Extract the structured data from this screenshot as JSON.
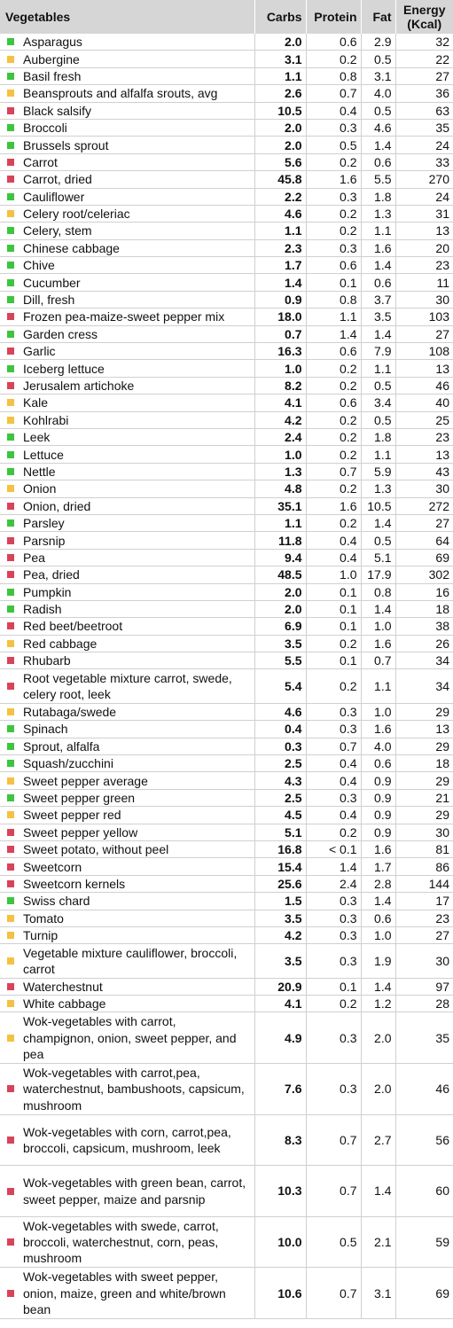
{
  "headers": {
    "name": "Vegetables",
    "carbs": "Carbs",
    "protein": "Protein",
    "fat": "Fat",
    "energy_line1": "Energy",
    "energy_line2": "(Kcal)"
  },
  "colors": {
    "green": "#3ec43e",
    "yellow": "#f5c142",
    "red": "#d9435a"
  },
  "rows": [
    {
      "name": "Asparagus",
      "color": "green",
      "carbs": "2.0",
      "protein": "0.6",
      "fat": "2.9",
      "energy": "32"
    },
    {
      "name": "Aubergine",
      "color": "yellow",
      "carbs": "3.1",
      "protein": "0.2",
      "fat": "0.5",
      "energy": "22"
    },
    {
      "name": "Basil fresh",
      "color": "green",
      "carbs": "1.1",
      "protein": "0.8",
      "fat": "3.1",
      "energy": "27"
    },
    {
      "name": "Beansprouts and alfalfa srouts, avg",
      "color": "yellow",
      "carbs": "2.6",
      "protein": "0.7",
      "fat": "4.0",
      "energy": "36"
    },
    {
      "name": "Black salsify",
      "color": "red",
      "carbs": "10.5",
      "protein": "0.4",
      "fat": "0.5",
      "energy": "63"
    },
    {
      "name": "Broccoli",
      "color": "green",
      "carbs": "2.0",
      "protein": "0.3",
      "fat": "4.6",
      "energy": "35"
    },
    {
      "name": "Brussels sprout",
      "color": "green",
      "carbs": "2.0",
      "protein": "0.5",
      "fat": "1.4",
      "energy": "24"
    },
    {
      "name": "Carrot",
      "color": "red",
      "carbs": "5.6",
      "protein": "0.2",
      "fat": "0.6",
      "energy": "33"
    },
    {
      "name": "Carrot, dried",
      "color": "red",
      "carbs": "45.8",
      "protein": "1.6",
      "fat": "5.5",
      "energy": "270"
    },
    {
      "name": "Cauliflower",
      "color": "green",
      "carbs": "2.2",
      "protein": "0.3",
      "fat": "1.8",
      "energy": "24"
    },
    {
      "name": "Celery root/celeriac",
      "color": "yellow",
      "carbs": "4.6",
      "protein": "0.2",
      "fat": "1.3",
      "energy": "31"
    },
    {
      "name": "Celery, stem",
      "color": "green",
      "carbs": "1.1",
      "protein": "0.2",
      "fat": "1.1",
      "energy": "13"
    },
    {
      "name": "Chinese cabbage",
      "color": "green",
      "carbs": "2.3",
      "protein": "0.3",
      "fat": "1.6",
      "energy": "20"
    },
    {
      "name": "Chive",
      "color": "green",
      "carbs": "1.7",
      "protein": "0.6",
      "fat": "1.4",
      "energy": "23"
    },
    {
      "name": "Cucumber",
      "color": "green",
      "carbs": "1.4",
      "protein": "0.1",
      "fat": "0.6",
      "energy": "11"
    },
    {
      "name": "Dill, fresh",
      "color": "green",
      "carbs": "0.9",
      "protein": "0.8",
      "fat": "3.7",
      "energy": "30"
    },
    {
      "name": "Frozen pea-maize-sweet pepper mix",
      "color": "red",
      "carbs": "18.0",
      "protein": "1.1",
      "fat": "3.5",
      "energy": "103"
    },
    {
      "name": "Garden cress",
      "color": "green",
      "carbs": "0.7",
      "protein": "1.4",
      "fat": "1.4",
      "energy": "27"
    },
    {
      "name": "Garlic",
      "color": "red",
      "carbs": "16.3",
      "protein": "0.6",
      "fat": "7.9",
      "energy": "108"
    },
    {
      "name": "Iceberg lettuce",
      "color": "green",
      "carbs": "1.0",
      "protein": "0.2",
      "fat": "1.1",
      "energy": "13"
    },
    {
      "name": "Jerusalem artichoke",
      "color": "red",
      "carbs": "8.2",
      "protein": "0.2",
      "fat": "0.5",
      "energy": "46"
    },
    {
      "name": "Kale",
      "color": "yellow",
      "carbs": "4.1",
      "protein": "0.6",
      "fat": "3.4",
      "energy": "40"
    },
    {
      "name": "Kohlrabi",
      "color": "yellow",
      "carbs": "4.2",
      "protein": "0.2",
      "fat": "0.5",
      "energy": "25"
    },
    {
      "name": "Leek",
      "color": "green",
      "carbs": "2.4",
      "protein": "0.2",
      "fat": "1.8",
      "energy": "23"
    },
    {
      "name": "Lettuce",
      "color": "green",
      "carbs": "1.0",
      "protein": "0.2",
      "fat": "1.1",
      "energy": "13"
    },
    {
      "name": "Nettle",
      "color": "green",
      "carbs": "1.3",
      "protein": "0.7",
      "fat": "5.9",
      "energy": "43"
    },
    {
      "name": "Onion",
      "color": "yellow",
      "carbs": "4.8",
      "protein": "0.2",
      "fat": "1.3",
      "energy": "30"
    },
    {
      "name": "Onion, dried",
      "color": "red",
      "carbs": "35.1",
      "protein": "1.6",
      "fat": "10.5",
      "energy": "272"
    },
    {
      "name": "Parsley",
      "color": "green",
      "carbs": "1.1",
      "protein": "0.2",
      "fat": "1.4",
      "energy": "27"
    },
    {
      "name": "Parsnip",
      "color": "red",
      "carbs": "11.8",
      "protein": "0.4",
      "fat": "0.5",
      "energy": "64"
    },
    {
      "name": "Pea",
      "color": "red",
      "carbs": "9.4",
      "protein": "0.4",
      "fat": "5.1",
      "energy": "69"
    },
    {
      "name": "Pea, dried",
      "color": "red",
      "carbs": "48.5",
      "protein": "1.0",
      "fat": "17.9",
      "energy": "302"
    },
    {
      "name": "Pumpkin",
      "color": "green",
      "carbs": "2.0",
      "protein": "0.1",
      "fat": "0.8",
      "energy": "16"
    },
    {
      "name": "Radish",
      "color": "green",
      "carbs": "2.0",
      "protein": "0.1",
      "fat": "1.4",
      "energy": "18"
    },
    {
      "name": "Red beet/beetroot",
      "color": "red",
      "carbs": "6.9",
      "protein": "0.1",
      "fat": "1.0",
      "energy": "38"
    },
    {
      "name": "Red cabbage",
      "color": "yellow",
      "carbs": "3.5",
      "protein": "0.2",
      "fat": "1.6",
      "energy": "26"
    },
    {
      "name": "Rhubarb",
      "color": "red",
      "carbs": "5.5",
      "protein": "0.1",
      "fat": "0.7",
      "energy": "34"
    },
    {
      "name": "Root vegetable mixture carrot, swede, celery root, leek",
      "color": "red",
      "carbs": "5.4",
      "protein": "0.2",
      "fat": "1.1",
      "energy": "34",
      "lines": 2
    },
    {
      "name": "Rutabaga/swede",
      "color": "yellow",
      "carbs": "4.6",
      "protein": "0.3",
      "fat": "1.0",
      "energy": "29"
    },
    {
      "name": "Spinach",
      "color": "green",
      "carbs": "0.4",
      "protein": "0.3",
      "fat": "1.6",
      "energy": "13"
    },
    {
      "name": "Sprout, alfalfa",
      "color": "green",
      "carbs": "0.3",
      "protein": "0.7",
      "fat": "4.0",
      "energy": "29"
    },
    {
      "name": "Squash/zucchini",
      "color": "green",
      "carbs": "2.5",
      "protein": "0.4",
      "fat": "0.6",
      "energy": "18"
    },
    {
      "name": "Sweet pepper average",
      "color": "yellow",
      "carbs": "4.3",
      "protein": "0.4",
      "fat": "0.9",
      "energy": "29"
    },
    {
      "name": "Sweet pepper green",
      "color": "green",
      "carbs": "2.5",
      "protein": "0.3",
      "fat": "0.9",
      "energy": "21"
    },
    {
      "name": "Sweet pepper red",
      "color": "yellow",
      "carbs": "4.5",
      "protein": "0.4",
      "fat": "0.9",
      "energy": "29"
    },
    {
      "name": "Sweet pepper yellow",
      "color": "red",
      "carbs": "5.1",
      "protein": "0.2",
      "fat": "0.9",
      "energy": "30"
    },
    {
      "name": "Sweet potato, without peel",
      "color": "red",
      "carbs": "16.8",
      "protein": "< 0.1",
      "fat": "1.6",
      "energy": "81"
    },
    {
      "name": "Sweetcorn",
      "color": "red",
      "carbs": "15.4",
      "protein": "1.4",
      "fat": "1.7",
      "energy": "86"
    },
    {
      "name": "Sweetcorn kernels",
      "color": "red",
      "carbs": "25.6",
      "protein": "2.4",
      "fat": "2.8",
      "energy": "144"
    },
    {
      "name": "Swiss chard",
      "color": "green",
      "carbs": "1.5",
      "protein": "0.3",
      "fat": "1.4",
      "energy": "17"
    },
    {
      "name": "Tomato",
      "color": "yellow",
      "carbs": "3.5",
      "protein": "0.3",
      "fat": "0.6",
      "energy": "23"
    },
    {
      "name": "Turnip",
      "color": "yellow",
      "carbs": "4.2",
      "protein": "0.3",
      "fat": "1.0",
      "energy": "27"
    },
    {
      "name": "Vegetable mixture cauliflower, broccoli, carrot",
      "color": "yellow",
      "carbs": "3.5",
      "protein": "0.3",
      "fat": "1.9",
      "energy": "30",
      "lines": 2
    },
    {
      "name": "Waterchestnut",
      "color": "red",
      "carbs": "20.9",
      "protein": "0.1",
      "fat": "1.4",
      "energy": "97"
    },
    {
      "name": "White cabbage",
      "color": "yellow",
      "carbs": "4.1",
      "protein": "0.2",
      "fat": "1.2",
      "energy": "28"
    },
    {
      "name": "Wok-vegetables with carrot, champignon, onion, sweet pepper, and pea",
      "color": "yellow",
      "carbs": "4.9",
      "protein": "0.3",
      "fat": "2.0",
      "energy": "35",
      "lines": 3
    },
    {
      "name": "Wok-vegetables with carrot,pea, waterchestnut, bambushoots, capsicum, mushroom",
      "color": "red",
      "carbs": "7.6",
      "protein": "0.3",
      "fat": "2.0",
      "energy": "46",
      "lines": 3
    },
    {
      "name": "Wok-vegetables with corn, carrot,pea, broccoli, capsicum, mushroom, leek",
      "color": "red",
      "carbs": "8.3",
      "protein": "0.7",
      "fat": "2.7",
      "energy": "56",
      "lines": 3
    },
    {
      "name": "Wok-vegetables with green bean, carrot, sweet pepper, maize and parsnip",
      "color": "red",
      "carbs": "10.3",
      "protein": "0.7",
      "fat": "1.4",
      "energy": "60",
      "lines": 3
    },
    {
      "name": "Wok-vegetables with swede, carrot, broccoli, waterchestnut, corn, peas, mushroom",
      "color": "red",
      "carbs": "10.0",
      "protein": "0.5",
      "fat": "2.1",
      "energy": "59",
      "lines": 3
    },
    {
      "name": "Wok-vegetables with sweet pepper, onion, maize, green and white/brown bean",
      "color": "red",
      "carbs": "10.6",
      "protein": "0.7",
      "fat": "3.1",
      "energy": "69",
      "lines": 3
    }
  ]
}
